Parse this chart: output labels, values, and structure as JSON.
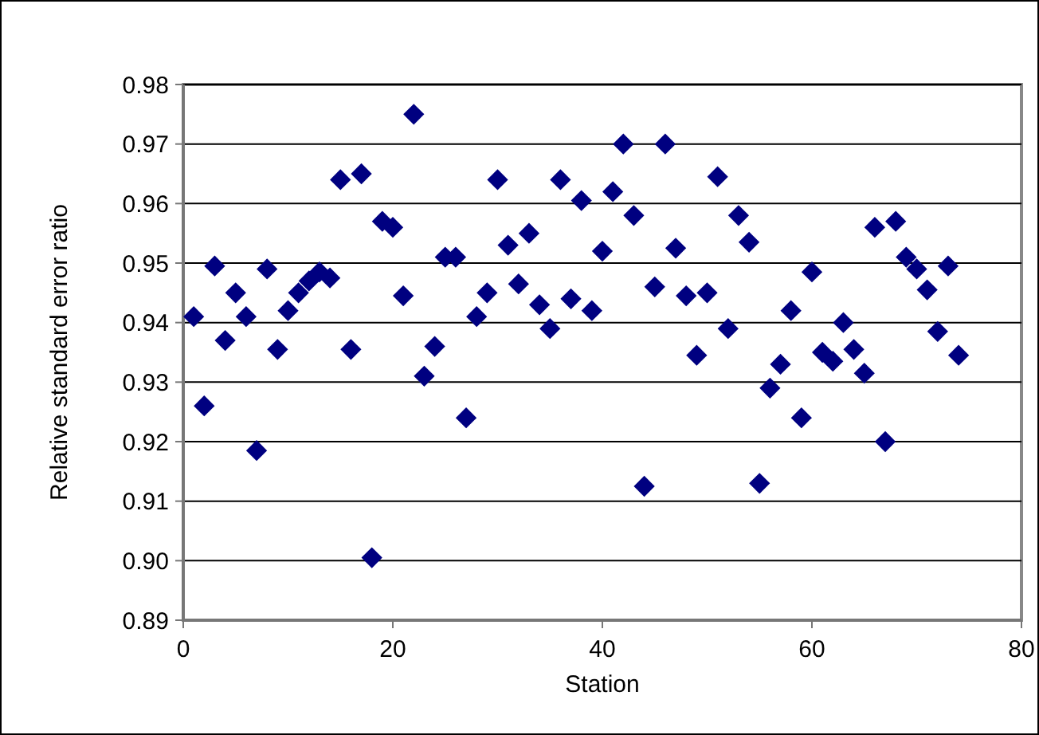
{
  "chart_data": {
    "type": "scatter",
    "xlabel": "Station",
    "ylabel": "Relative standard error ratio",
    "x": [
      1,
      2,
      3,
      4,
      5,
      6,
      7,
      8,
      9,
      10,
      11,
      12,
      13,
      14,
      15,
      16,
      17,
      18,
      19,
      20,
      21,
      22,
      23,
      24,
      25,
      26,
      27,
      28,
      29,
      30,
      31,
      32,
      33,
      34,
      35,
      36,
      37,
      38,
      39,
      40,
      41,
      42,
      43,
      44,
      45,
      46,
      47,
      48,
      49,
      50,
      51,
      52,
      53,
      54,
      55,
      56,
      57,
      58,
      59,
      60,
      61,
      62,
      63,
      64,
      65,
      66,
      67,
      68,
      69,
      70,
      71,
      72,
      73,
      74
    ],
    "series": [
      {
        "color": "#000080",
        "values": [
          0.941,
          0.926,
          0.9495,
          0.937,
          0.945,
          0.941,
          0.9185,
          0.949,
          0.9355,
          0.942,
          0.945,
          0.947,
          0.9485,
          0.9475,
          0.964,
          0.9355,
          0.965,
          0.9005,
          0.957,
          0.956,
          0.9445,
          0.975,
          0.931,
          0.936,
          0.951,
          0.951,
          0.924,
          0.941,
          0.945,
          0.964,
          0.953,
          0.9465,
          0.955,
          0.943,
          0.939,
          0.964,
          0.944,
          0.9605,
          0.942,
          0.952,
          0.962,
          0.97,
          0.958,
          0.9125,
          0.946,
          0.97,
          0.9525,
          0.9445,
          0.9345,
          0.945,
          0.9645,
          0.939,
          0.958,
          0.9535,
          0.913,
          0.929,
          0.933,
          0.942,
          0.924,
          0.9485,
          0.935,
          0.9335,
          0.94,
          0.9355,
          0.9315,
          0.956,
          0.92,
          0.957,
          0.951,
          0.949,
          0.9455,
          0.9385,
          0.9495,
          0.9345
        ]
      }
    ],
    "xlim": [
      0,
      80
    ],
    "xticks": [
      0,
      20,
      40,
      60,
      80
    ],
    "ylim": [
      0.89,
      0.98
    ],
    "yticks": [
      {
        "value": 0.89,
        "label": "0.89"
      },
      {
        "value": 0.9,
        "label": "0.90"
      },
      {
        "value": 0.91,
        "label": "0.91"
      },
      {
        "value": 0.92,
        "label": "0.92"
      },
      {
        "value": 0.93,
        "label": "0.93"
      },
      {
        "value": 0.94,
        "label": "0.94"
      },
      {
        "value": 0.95,
        "label": "0.95"
      },
      {
        "value": 0.96,
        "label": "0.96"
      },
      {
        "value": 0.97,
        "label": "0.97"
      },
      {
        "value": 0.98,
        "label": "0.98"
      }
    ],
    "grid": "y",
    "marker": "diamond"
  }
}
